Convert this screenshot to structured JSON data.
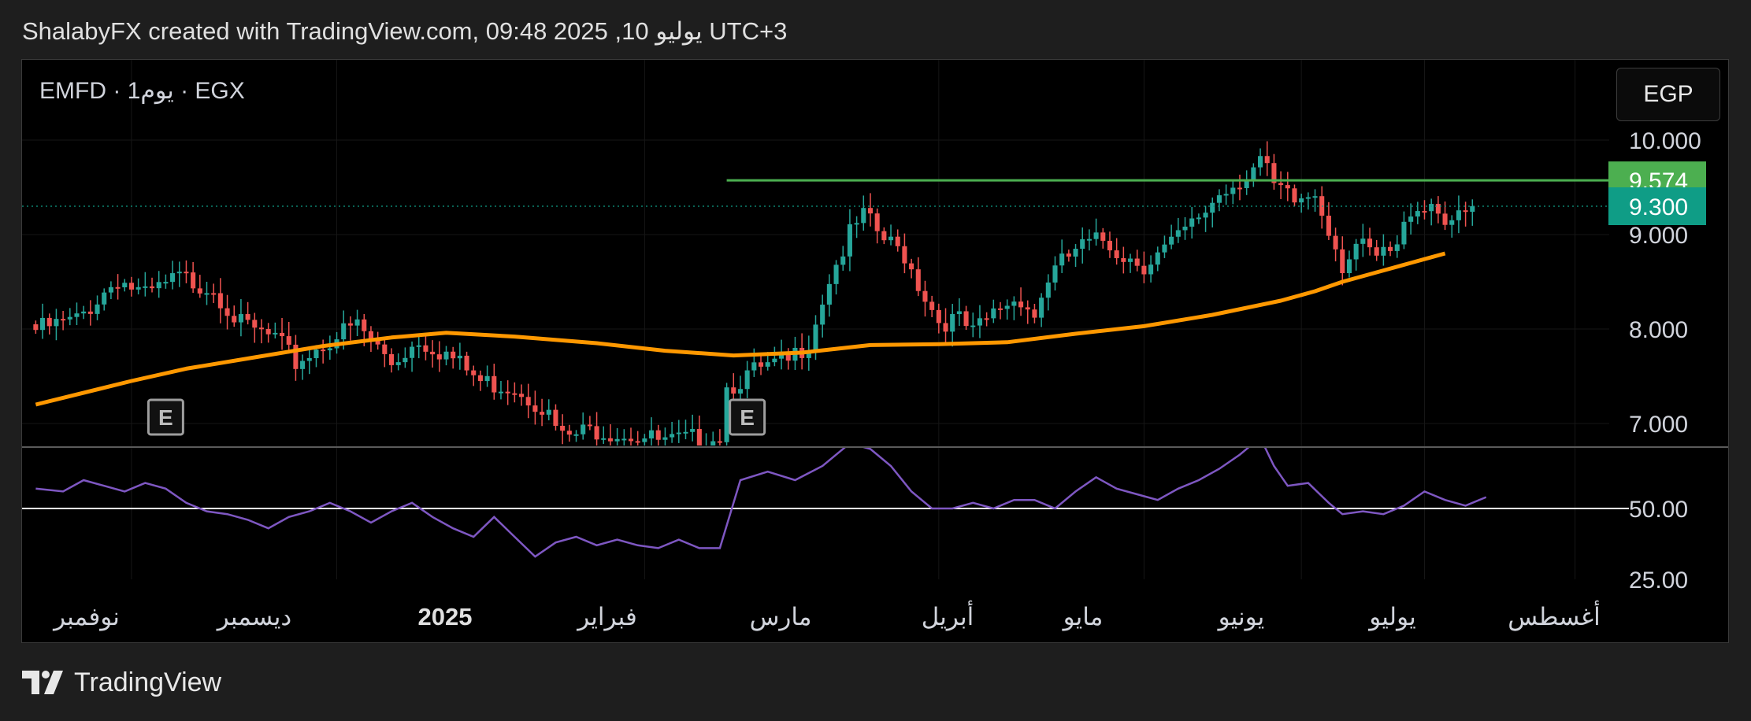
{
  "header": {
    "caption": "ShalabyFX created with TradingView.com, 09:48 2025 ,10 يوليو UTC+3"
  },
  "legend": {
    "symbol_text": "EMFD · 1يوم · EGX"
  },
  "currency_button": {
    "label": "EGP"
  },
  "footer": {
    "brand": "TradingView"
  },
  "colors": {
    "up": "#26a69a",
    "down": "#ef5350",
    "ma": "#ff9800",
    "resistance": "#4caf50",
    "rsi": "#7e57c2",
    "price_badge": "#0f9d86",
    "level_badge": "#4caf50",
    "background": "#000000"
  },
  "chart_data": {
    "type": "candlestick",
    "symbol": "EMFD",
    "interval": "1 يوم",
    "exchange": "EGX",
    "currency": "EGP",
    "price_axis": {
      "ticks": [
        {
          "value": 10,
          "label": "10.000"
        },
        {
          "value": 9,
          "label": "9.000"
        },
        {
          "value": 8,
          "label": "8.000"
        },
        {
          "value": 7,
          "label": "7.000"
        }
      ]
    },
    "time_axis": [
      {
        "label": "نوفمبر",
        "bold": false
      },
      {
        "label": "ديسمبر",
        "bold": false
      },
      {
        "label": "2025",
        "bold": true
      },
      {
        "label": "فبراير",
        "bold": false
      },
      {
        "label": "مارس",
        "bold": false
      },
      {
        "label": "أبريل",
        "bold": false
      },
      {
        "label": "مايو",
        "bold": false
      },
      {
        "label": "يونيو",
        "bold": false
      },
      {
        "label": "يوليو",
        "bold": false
      },
      {
        "label": "أغسطس",
        "bold": false
      }
    ],
    "last_price": {
      "value": 9.3,
      "label": "9.300"
    },
    "resistance_level": {
      "value": 9.574,
      "label": "9.574"
    },
    "earnings_markers": [
      "E",
      "E"
    ],
    "close_path": [
      [
        0,
        8.05
      ],
      [
        6,
        8.15
      ],
      [
        12,
        8.6
      ],
      [
        16,
        8.4
      ],
      [
        21,
        8.6
      ],
      [
        26,
        8.5
      ],
      [
        30,
        8.1
      ],
      [
        35,
        7.95
      ],
      [
        38,
        7.7
      ],
      [
        43,
        7.95
      ],
      [
        47,
        8.1
      ],
      [
        52,
        7.7
      ],
      [
        56,
        7.95
      ],
      [
        60,
        7.8
      ],
      [
        65,
        7.5
      ],
      [
        70,
        7.45
      ],
      [
        74,
        7.25
      ],
      [
        77,
        6.9
      ],
      [
        82,
        7.0
      ],
      [
        87,
        6.95
      ],
      [
        92,
        6.85
      ],
      [
        97,
        6.9
      ],
      [
        100,
        6.95
      ],
      [
        101,
        7.45
      ],
      [
        105,
        7.6
      ],
      [
        110,
        7.7
      ],
      [
        113,
        7.95
      ],
      [
        116,
        8.6
      ],
      [
        119,
        9.05
      ],
      [
        121,
        9.25
      ],
      [
        124,
        9.0
      ],
      [
        127,
        8.85
      ],
      [
        129,
        8.55
      ],
      [
        132,
        8.15
      ],
      [
        135,
        8.15
      ],
      [
        137,
        8.0
      ],
      [
        141,
        8.3
      ],
      [
        144,
        8.4
      ],
      [
        146,
        8.2
      ],
      [
        148,
        8.6
      ],
      [
        152,
        8.9
      ],
      [
        156,
        9.0
      ],
      [
        159,
        8.85
      ],
      [
        162,
        8.75
      ],
      [
        166,
        8.95
      ],
      [
        169,
        9.15
      ],
      [
        173,
        9.5
      ],
      [
        177,
        9.7
      ],
      [
        179,
        9.85
      ],
      [
        181,
        9.55
      ],
      [
        184,
        9.4
      ],
      [
        187,
        9.5
      ],
      [
        189,
        9.15
      ],
      [
        191,
        8.75
      ],
      [
        193,
        8.95
      ],
      [
        196,
        8.8
      ],
      [
        199,
        8.9
      ],
      [
        201,
        9.35
      ],
      [
        204,
        9.4
      ],
      [
        206,
        9.25
      ],
      [
        208,
        9.2
      ],
      [
        210,
        9.3
      ]
    ],
    "ma_path": [
      [
        0,
        7.2
      ],
      [
        14,
        7.45
      ],
      [
        22,
        7.58
      ],
      [
        32,
        7.7
      ],
      [
        42,
        7.82
      ],
      [
        52,
        7.91
      ],
      [
        60,
        7.96
      ],
      [
        70,
        7.92
      ],
      [
        82,
        7.85
      ],
      [
        92,
        7.77
      ],
      [
        102,
        7.72
      ],
      [
        112,
        7.75
      ],
      [
        122,
        7.83
      ],
      [
        132,
        7.84
      ],
      [
        142,
        7.86
      ],
      [
        152,
        7.95
      ],
      [
        162,
        8.03
      ],
      [
        172,
        8.15
      ],
      [
        182,
        8.3
      ],
      [
        187,
        8.4
      ],
      [
        191,
        8.5
      ],
      [
        196,
        8.6
      ],
      [
        201,
        8.7
      ],
      [
        204,
        8.76
      ],
      [
        206,
        8.8
      ]
    ],
    "rsi": {
      "midline": 50,
      "ticks": [
        {
          "value": 50,
          "label": "50.00"
        },
        {
          "value": 25,
          "label": "25.00"
        }
      ],
      "path": [
        [
          0,
          57
        ],
        [
          4,
          56
        ],
        [
          7,
          60
        ],
        [
          10,
          58
        ],
        [
          13,
          56
        ],
        [
          16,
          59
        ],
        [
          19,
          57
        ],
        [
          22,
          52
        ],
        [
          25,
          49
        ],
        [
          28,
          48
        ],
        [
          31,
          46
        ],
        [
          34,
          43
        ],
        [
          37,
          47
        ],
        [
          40,
          49
        ],
        [
          43,
          52
        ],
        [
          46,
          49
        ],
        [
          49,
          45
        ],
        [
          52,
          49
        ],
        [
          55,
          52
        ],
        [
          58,
          47
        ],
        [
          61,
          43
        ],
        [
          64,
          40
        ],
        [
          67,
          47
        ],
        [
          70,
          40
        ],
        [
          73,
          33
        ],
        [
          76,
          38
        ],
        [
          79,
          40
        ],
        [
          82,
          37
        ],
        [
          85,
          39
        ],
        [
          88,
          37
        ],
        [
          91,
          36
        ],
        [
          94,
          39
        ],
        [
          97,
          36
        ],
        [
          100,
          36
        ],
        [
          103,
          60
        ],
        [
          107,
          63
        ],
        [
          111,
          60
        ],
        [
          115,
          65
        ],
        [
          119,
          73
        ],
        [
          122,
          71
        ],
        [
          125,
          65
        ],
        [
          128,
          56
        ],
        [
          131,
          50
        ],
        [
          134,
          50
        ],
        [
          137,
          52
        ],
        [
          140,
          50
        ],
        [
          143,
          53
        ],
        [
          146,
          53
        ],
        [
          149,
          50
        ],
        [
          152,
          56
        ],
        [
          155,
          61
        ],
        [
          158,
          57
        ],
        [
          161,
          55
        ],
        [
          164,
          53
        ],
        [
          167,
          57
        ],
        [
          170,
          60
        ],
        [
          173,
          64
        ],
        [
          176,
          69
        ],
        [
          179,
          75
        ],
        [
          181,
          65
        ],
        [
          183,
          58
        ],
        [
          186,
          59
        ],
        [
          189,
          52
        ],
        [
          191,
          48
        ],
        [
          194,
          49
        ],
        [
          197,
          48
        ],
        [
          200,
          51
        ],
        [
          203,
          56
        ],
        [
          206,
          53
        ],
        [
          209,
          51
        ],
        [
          212,
          54
        ]
      ]
    }
  }
}
